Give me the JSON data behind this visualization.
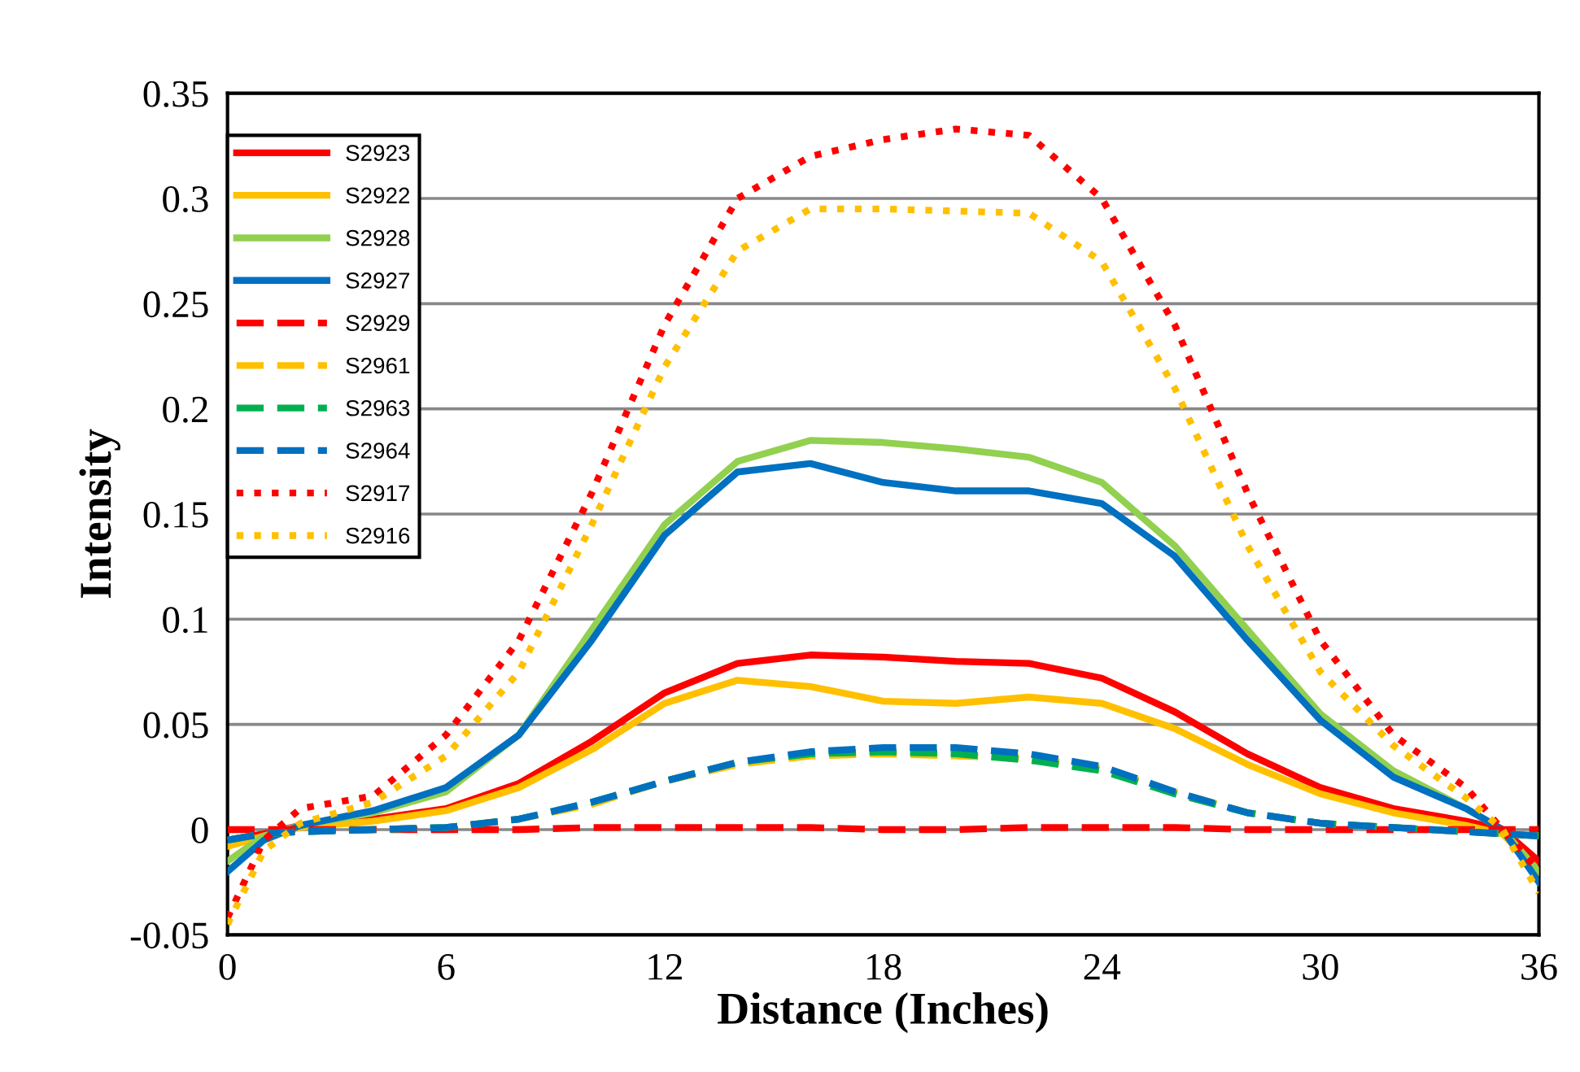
{
  "chart_data": {
    "type": "line",
    "xlabel": "Distance (Inches)",
    "ylabel": "Intensity",
    "xlim": [
      0,
      36
    ],
    "xticks": [
      0,
      6,
      12,
      18,
      24,
      30,
      36
    ],
    "ylim": [
      -0.05,
      0.35
    ],
    "yticks": [
      {
        "value": -0.05,
        "label": "-0.05"
      },
      0,
      0.05,
      0.1,
      0.15,
      0.2,
      0.25,
      0.3,
      0.35
    ],
    "grid": "y",
    "legend": "top left",
    "marker": "none",
    "x": [
      0,
      1,
      2,
      4,
      6,
      8,
      10,
      12,
      14,
      16,
      18,
      20,
      22,
      24,
      26,
      28,
      30,
      32,
      34,
      35,
      36
    ],
    "series": [
      {
        "name": "S2923",
        "color": "#ff0000",
        "line_style": "solid",
        "values": [
          -0.005,
          -0.002,
          0.002,
          0.005,
          0.01,
          0.022,
          0.042,
          0.065,
          0.079,
          0.083,
          0.082,
          0.08,
          0.079,
          0.072,
          0.056,
          0.036,
          0.02,
          0.01,
          0.004,
          0.0,
          -0.015
        ]
      },
      {
        "name": "S2922",
        "color": "#ffc000",
        "line_style": "solid",
        "values": [
          -0.008,
          -0.003,
          0.001,
          0.004,
          0.009,
          0.02,
          0.038,
          0.06,
          0.071,
          0.068,
          0.061,
          0.06,
          0.063,
          0.06,
          0.048,
          0.031,
          0.017,
          0.008,
          0.002,
          -0.002,
          -0.02
        ]
      },
      {
        "name": "S2928",
        "color": "#92d050",
        "line_style": "solid",
        "values": [
          -0.015,
          -0.003,
          0.002,
          0.008,
          0.018,
          0.045,
          0.095,
          0.145,
          0.175,
          0.185,
          0.184,
          0.181,
          0.177,
          0.165,
          0.135,
          0.095,
          0.055,
          0.028,
          0.01,
          0.0,
          -0.02
        ]
      },
      {
        "name": "S2927",
        "color": "#0070c0",
        "line_style": "solid",
        "values": [
          -0.02,
          -0.005,
          0.002,
          0.009,
          0.02,
          0.045,
          0.09,
          0.14,
          0.17,
          0.174,
          0.165,
          0.161,
          0.161,
          0.155,
          0.13,
          0.09,
          0.052,
          0.025,
          0.01,
          0.0,
          -0.025
        ]
      },
      {
        "name": "S2929",
        "color": "#ff0000",
        "line_style": "dashed",
        "values": [
          0.0,
          0.0,
          0.0,
          0.0,
          0.0,
          0.0,
          0.001,
          0.001,
          0.001,
          0.001,
          0.0,
          0.0,
          0.001,
          0.001,
          0.001,
          0.0,
          0.0,
          0.0,
          0.0,
          0.0,
          0.0
        ]
      },
      {
        "name": "S2961",
        "color": "#ffc000",
        "line_style": "dashed",
        "values": [
          -0.005,
          -0.002,
          -0.001,
          0.0,
          0.001,
          0.005,
          0.012,
          0.023,
          0.031,
          0.035,
          0.036,
          0.035,
          0.034,
          0.029,
          0.018,
          0.008,
          0.003,
          0.001,
          -0.001,
          -0.002,
          -0.003
        ]
      },
      {
        "name": "S2963",
        "color": "#00b050",
        "line_style": "dashed",
        "values": [
          -0.005,
          -0.002,
          -0.001,
          0.0,
          0.001,
          0.005,
          0.013,
          0.023,
          0.032,
          0.036,
          0.037,
          0.036,
          0.033,
          0.028,
          0.017,
          0.008,
          0.003,
          0.001,
          -0.001,
          -0.002,
          -0.003
        ]
      },
      {
        "name": "S2964",
        "color": "#0070c0",
        "line_style": "dashed",
        "values": [
          -0.005,
          -0.002,
          -0.001,
          0.0,
          0.001,
          0.005,
          0.013,
          0.023,
          0.032,
          0.037,
          0.039,
          0.039,
          0.036,
          0.03,
          0.018,
          0.008,
          0.003,
          0.001,
          -0.001,
          -0.002,
          -0.003
        ]
      },
      {
        "name": "S2917",
        "color": "#ff0000",
        "line_style": "dotted",
        "values": [
          -0.042,
          -0.005,
          0.01,
          0.016,
          0.045,
          0.09,
          0.16,
          0.24,
          0.3,
          0.32,
          0.328,
          0.333,
          0.33,
          0.3,
          0.24,
          0.16,
          0.09,
          0.045,
          0.02,
          0.0,
          -0.02
        ]
      },
      {
        "name": "S2916",
        "color": "#ffc000",
        "line_style": "dotted",
        "values": [
          -0.045,
          -0.01,
          0.003,
          0.013,
          0.035,
          0.075,
          0.145,
          0.22,
          0.275,
          0.295,
          0.295,
          0.294,
          0.293,
          0.27,
          0.21,
          0.135,
          0.075,
          0.04,
          0.015,
          0.0,
          -0.03
        ]
      }
    ]
  }
}
